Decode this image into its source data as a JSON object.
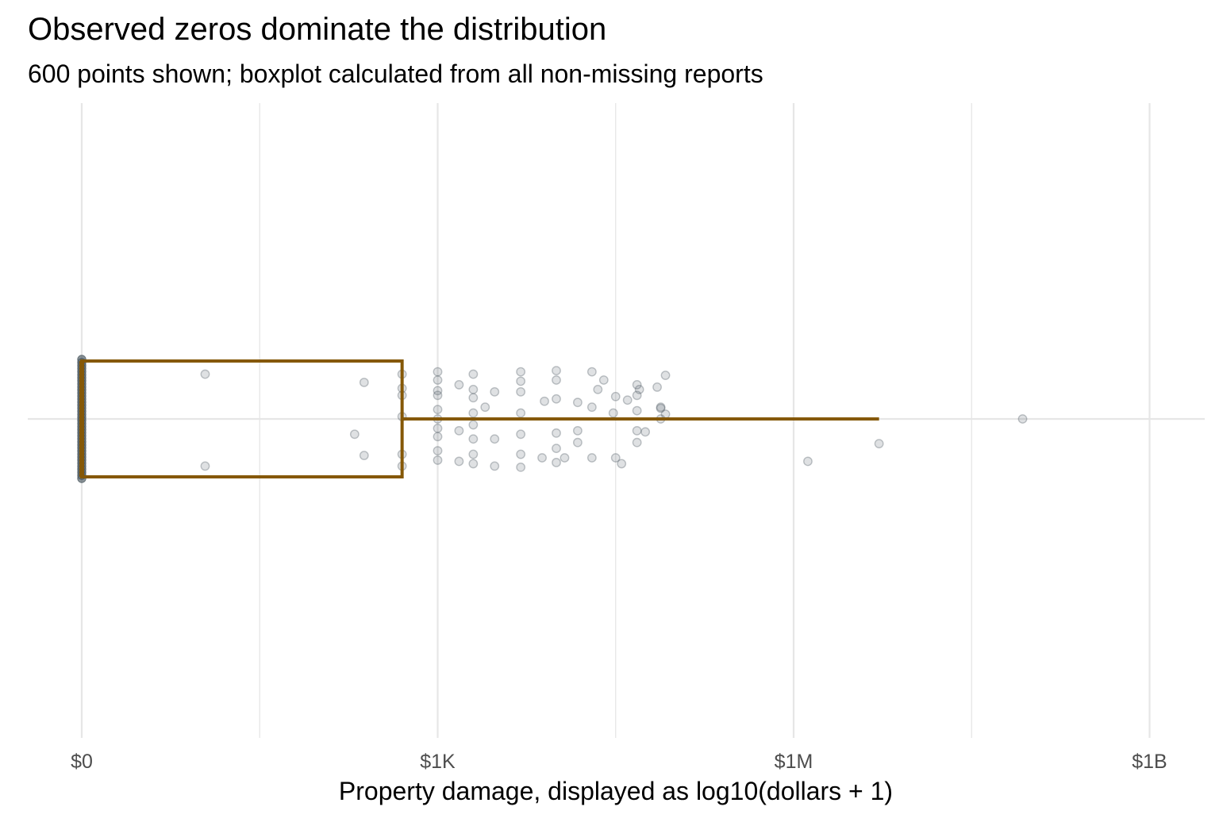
{
  "chart_data": {
    "type": "boxplot",
    "title": "Observed zeros dominate the distribution",
    "subtitle": "600 points shown; boxplot calculated from all non-missing reports",
    "xlabel": "Property damage, displayed as log10(dollars + 1)",
    "ylabel": "",
    "x_scale": "log10(dollars + 1)",
    "x_range_log10": [
      -0.15,
      9.15
    ],
    "x_ticks": [
      {
        "value": 0,
        "label": "$0"
      },
      {
        "value": 3,
        "label": "$1K"
      },
      {
        "value": 6,
        "label": "$1M"
      },
      {
        "value": 9,
        "label": "$1B"
      }
    ],
    "grid": true,
    "colors": {
      "box": "#855807",
      "points": "#4d5a62",
      "grid": "#e6e6e6"
    },
    "boxplot_log10": {
      "min": 0,
      "q1": 0,
      "median": 0,
      "q3": 2.7,
      "whisker_high": 6.72
    },
    "points": [
      {
        "x": 0,
        "jitter": -0.45,
        "count": 40
      },
      {
        "x": 1.04,
        "jitter": 0.38
      },
      {
        "x": 1.04,
        "jitter": -0.4
      },
      {
        "x": 2.3,
        "jitter": -0.13
      },
      {
        "x": 2.38,
        "jitter": 0.31
      },
      {
        "x": 2.38,
        "jitter": -0.31
      },
      {
        "x": 2.7,
        "jitter": 0.38
      },
      {
        "x": 2.7,
        "jitter": 0.26
      },
      {
        "x": 2.7,
        "jitter": 0.2
      },
      {
        "x": 2.7,
        "jitter": 0.02
      },
      {
        "x": 2.7,
        "jitter": -0.3
      },
      {
        "x": 2.7,
        "jitter": -0.4
      },
      {
        "x": 3.0,
        "jitter": 0.4
      },
      {
        "x": 3.0,
        "jitter": 0.33
      },
      {
        "x": 3.0,
        "jitter": 0.24
      },
      {
        "x": 3.0,
        "jitter": 0.2
      },
      {
        "x": 3.0,
        "jitter": 0.08
      },
      {
        "x": 3.0,
        "jitter": 0.0
      },
      {
        "x": 3.0,
        "jitter": -0.08
      },
      {
        "x": 3.0,
        "jitter": -0.15
      },
      {
        "x": 3.0,
        "jitter": -0.27
      },
      {
        "x": 3.0,
        "jitter": -0.35
      },
      {
        "x": 3.18,
        "jitter": 0.29
      },
      {
        "x": 3.18,
        "jitter": -0.1
      },
      {
        "x": 3.18,
        "jitter": -0.36
      },
      {
        "x": 3.3,
        "jitter": 0.38
      },
      {
        "x": 3.3,
        "jitter": 0.25
      },
      {
        "x": 3.3,
        "jitter": 0.18
      },
      {
        "x": 3.3,
        "jitter": 0.05
      },
      {
        "x": 3.3,
        "jitter": -0.05
      },
      {
        "x": 3.3,
        "jitter": -0.17
      },
      {
        "x": 3.3,
        "jitter": -0.3
      },
      {
        "x": 3.3,
        "jitter": -0.38
      },
      {
        "x": 3.4,
        "jitter": 0.1
      },
      {
        "x": 3.48,
        "jitter": 0.23
      },
      {
        "x": 3.48,
        "jitter": -0.17
      },
      {
        "x": 3.48,
        "jitter": -0.4
      },
      {
        "x": 3.7,
        "jitter": 0.4
      },
      {
        "x": 3.7,
        "jitter": 0.32
      },
      {
        "x": 3.7,
        "jitter": 0.23
      },
      {
        "x": 3.7,
        "jitter": 0.05
      },
      {
        "x": 3.7,
        "jitter": -0.13
      },
      {
        "x": 3.7,
        "jitter": -0.3
      },
      {
        "x": 3.7,
        "jitter": -0.41
      },
      {
        "x": 3.88,
        "jitter": -0.33
      },
      {
        "x": 3.9,
        "jitter": 0.15
      },
      {
        "x": 4.0,
        "jitter": 0.41
      },
      {
        "x": 4.0,
        "jitter": 0.33
      },
      {
        "x": 4.0,
        "jitter": 0.17
      },
      {
        "x": 4.0,
        "jitter": -0.12
      },
      {
        "x": 4.0,
        "jitter": -0.25
      },
      {
        "x": 4.0,
        "jitter": -0.37
      },
      {
        "x": 4.07,
        "jitter": -0.33
      },
      {
        "x": 4.18,
        "jitter": 0.14
      },
      {
        "x": 4.18,
        "jitter": -0.1
      },
      {
        "x": 4.18,
        "jitter": -0.2
      },
      {
        "x": 4.3,
        "jitter": 0.4
      },
      {
        "x": 4.3,
        "jitter": 0.1
      },
      {
        "x": 4.3,
        "jitter": -0.33
      },
      {
        "x": 4.35,
        "jitter": 0.25
      },
      {
        "x": 4.4,
        "jitter": 0.33
      },
      {
        "x": 4.48,
        "jitter": 0.05
      },
      {
        "x": 4.5,
        "jitter": 0.19
      },
      {
        "x": 4.5,
        "jitter": -0.33
      },
      {
        "x": 4.55,
        "jitter": -0.38
      },
      {
        "x": 4.6,
        "jitter": 0.16
      },
      {
        "x": 4.68,
        "jitter": 0.29
      },
      {
        "x": 4.68,
        "jitter": 0.2
      },
      {
        "x": 4.68,
        "jitter": 0.07
      },
      {
        "x": 4.68,
        "jitter": -0.1
      },
      {
        "x": 4.68,
        "jitter": -0.2
      },
      {
        "x": 4.7,
        "jitter": 0.25
      },
      {
        "x": 4.75,
        "jitter": -0.11
      },
      {
        "x": 4.85,
        "jitter": 0.27
      },
      {
        "x": 4.88,
        "jitter": 0.1
      },
      {
        "x": 4.88,
        "jitter": 0.0
      },
      {
        "x": 4.88,
        "jitter": 0.09
      },
      {
        "x": 4.92,
        "jitter": 0.37
      },
      {
        "x": 4.92,
        "jitter": 0.04
      },
      {
        "x": 6.12,
        "jitter": -0.36
      },
      {
        "x": 6.72,
        "jitter": -0.21
      },
      {
        "x": 7.93,
        "jitter": 0.0
      }
    ]
  }
}
